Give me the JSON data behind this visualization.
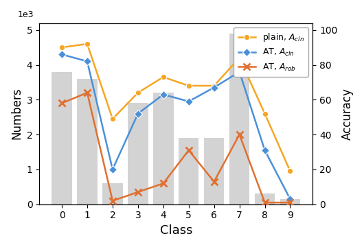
{
  "classes": [
    0,
    1,
    2,
    3,
    4,
    5,
    6,
    7,
    8,
    9
  ],
  "bar_heights": [
    3800,
    3600,
    600,
    2900,
    3200,
    1900,
    1900,
    4900,
    300,
    150
  ],
  "plain_acln": [
    90,
    92,
    49,
    64,
    73,
    68,
    68,
    84,
    52,
    19
  ],
  "at_acln": [
    86,
    82,
    20,
    52,
    63,
    59,
    67,
    76,
    31,
    3
  ],
  "at_arob": [
    58,
    64,
    2,
    7,
    12,
    31,
    13,
    40,
    1,
    1
  ],
  "bar_color": "#d3d3d3",
  "plain_color": "#f5a623",
  "at_acln_color": "#4a90d9",
  "at_arob_color": "#e07030",
  "ylabel_left": "Numbers",
  "ylabel_right": "Accuracy",
  "xlabel": "Class",
  "ylim_left": [
    0,
    5200
  ],
  "ylim_right": [
    0,
    104
  ],
  "legend_labels": [
    "plain, $A_{cln}$",
    "AT, $A_{cln}$",
    "AT, $A_{rob}$"
  ]
}
